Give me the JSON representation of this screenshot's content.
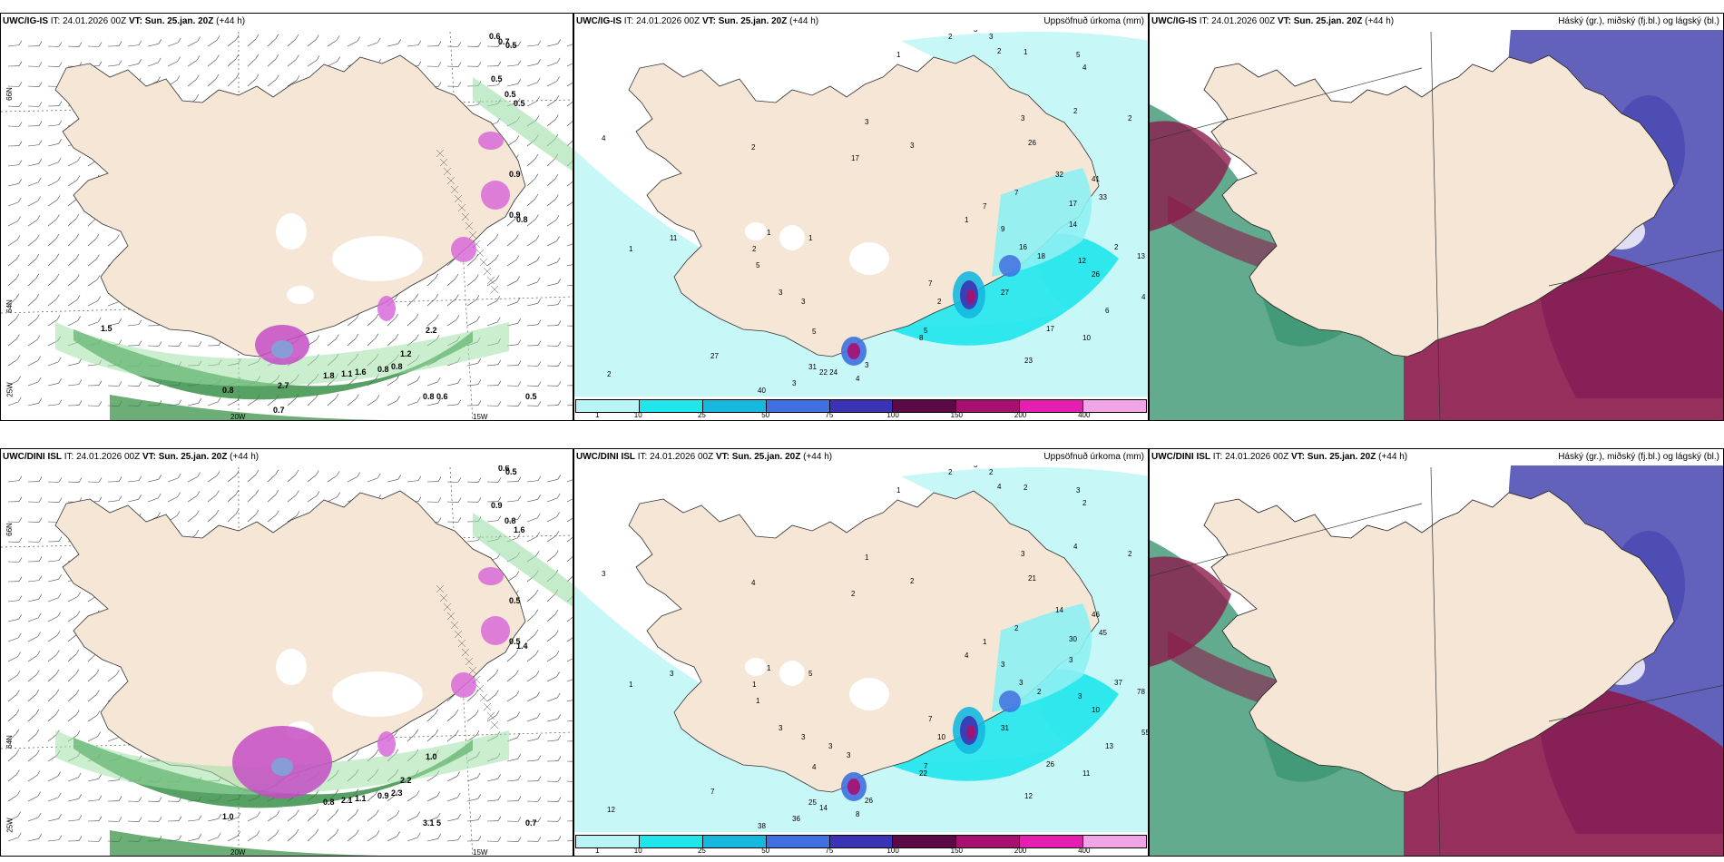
{
  "rows": [
    {
      "model": "UWC/IG-IS",
      "it_label": "IT:",
      "it_value": "24.01.2026 00Z",
      "vt_label": "VT:",
      "vt_value": "Sun. 25.jan. 20Z",
      "lead": "(+44 h)",
      "precip_numbers": [
        "1",
        "2",
        "3",
        "3",
        "2",
        "1",
        "5",
        "4",
        "2",
        "3",
        "3",
        "3",
        "2",
        "26",
        "32",
        "41",
        "33",
        "17",
        "7",
        "7",
        "9",
        "16",
        "18",
        "14",
        "12",
        "26",
        "2",
        "13",
        "4",
        "6",
        "10",
        "23",
        "17",
        "27",
        "8",
        "5",
        "5",
        "31",
        "3",
        "4",
        "2",
        "27",
        "40",
        "3",
        "22 24",
        "5",
        "2",
        "11",
        "17",
        "1",
        "1",
        "2",
        "4",
        "1",
        "2",
        "1",
        "7",
        "5",
        "3",
        "3"
      ],
      "wind_numbers": [
        "0.6",
        "0.7",
        "0.5",
        "0.9",
        "0.5",
        "0.5",
        "0.8",
        "0.9",
        "0.5",
        "2.2",
        "1.2",
        "0.8",
        "0.8",
        "1.8",
        "1.1",
        "1.6",
        "0.8",
        "0.6",
        "0.5",
        "0.8",
        "2.7",
        "1.5",
        "0.7"
      ]
    },
    {
      "model": "UWC/DINI ISL",
      "it_label": "IT:",
      "it_value": "24.01.2026 00Z",
      "vt_label": "VT:",
      "vt_value": "Sun. 25.jan. 20Z",
      "lead": "(+44 h)",
      "precip_numbers": [
        "1",
        "2",
        "3",
        "2",
        "4",
        "2",
        "3",
        "2",
        "4",
        "3",
        "2",
        "1",
        "2",
        "21",
        "14",
        "46",
        "45",
        "30",
        "2",
        "1",
        "3",
        "3",
        "2",
        "3",
        "3",
        "10",
        "37",
        "78",
        "55",
        "13",
        "11",
        "12",
        "26",
        "31",
        "22",
        "7",
        "4",
        "25",
        "26",
        "8",
        "12",
        "7",
        "38",
        "36",
        "14",
        "3",
        "4",
        "3",
        "2",
        "1",
        "5",
        "1",
        "3",
        "1",
        "10",
        "4",
        "7",
        "1",
        "3",
        "3",
        "3",
        "3"
      ],
      "wind_numbers": [
        "0.6",
        "0.6",
        "0.5",
        "0.5",
        "0.8",
        "1.6",
        "1.0",
        "0.5",
        "0.7",
        "1.0",
        "2.2",
        "0.9",
        "2.3",
        "0.8",
        "2.1",
        "1.1",
        "3.1",
        "5",
        "0.9",
        "1.4"
      ]
    }
  ],
  "precip_title": "Uppsöfnuð úrkoma (mm)",
  "cloud_title": "Háský (gr.), miðský (fj.bl.) og lágský (bl.)",
  "legend_labels": [
    "1",
    "10",
    "25",
    "50",
    "75",
    "100",
    "150",
    "200",
    "400"
  ],
  "legend_colors": [
    "#b9f5f7",
    "#1ee6ec",
    "#17b8e0",
    "#3f6fe0",
    "#3b33b5",
    "#5b0a47",
    "#a8106f",
    "#e51db0",
    "#f1a5e8"
  ],
  "axis_labels": {
    "lat_top": "66N",
    "lat_mid": "64N",
    "lat_bottom": "25W",
    "lon_left": "20W",
    "lon_right": "15W"
  },
  "colors": {
    "land": "#f5e6d5",
    "ocean_precip": "#c8f7f8",
    "cloud_high": "#2e8f6a",
    "cloud_mid": "#4747b0",
    "cloud_low": "#8c1a4b"
  }
}
